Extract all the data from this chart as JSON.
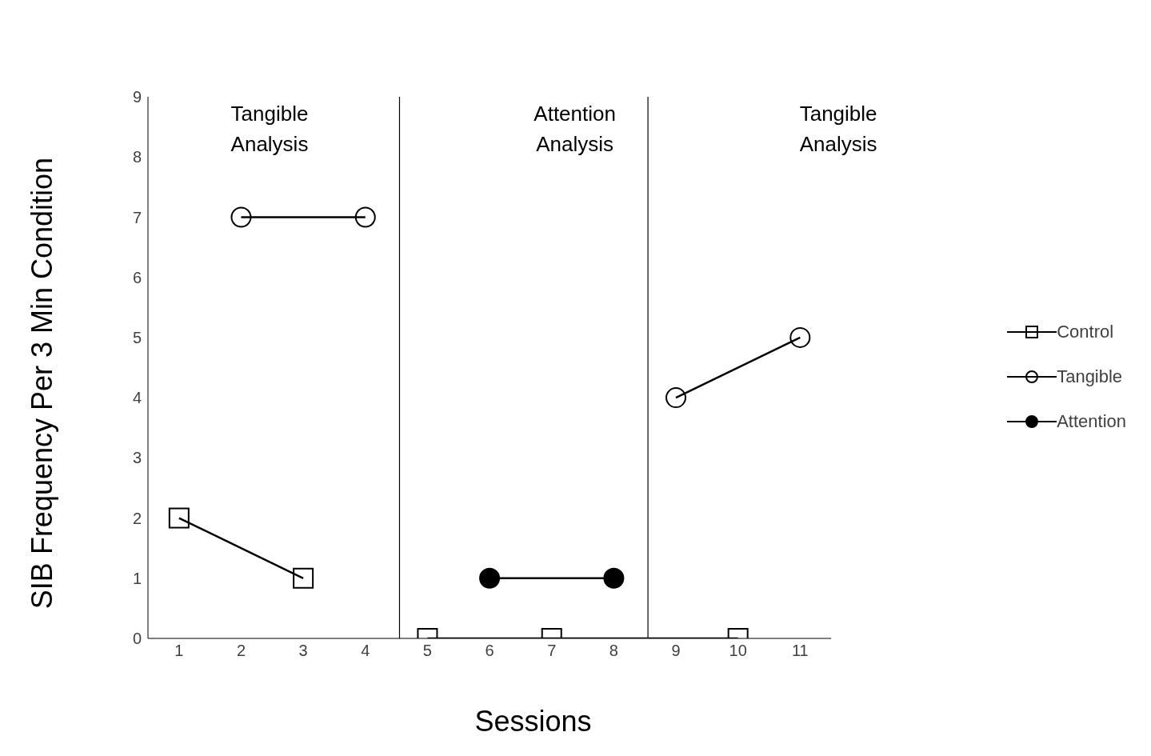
{
  "chart_data": {
    "type": "line",
    "xlabel": "Sessions",
    "ylabel": "SIB Frequency Per 3 Min Condition",
    "xlim": [
      0.5,
      11.5
    ],
    "xticks": [
      1,
      2,
      3,
      4,
      5,
      6,
      7,
      8,
      9,
      10,
      11
    ],
    "ylim": [
      0,
      9
    ],
    "yticks": [
      0,
      1,
      2,
      3,
      4,
      5,
      6,
      7,
      8,
      9
    ],
    "legend": "right",
    "series": [
      {
        "name": "Control",
        "color": "#000000",
        "marker": "square-open",
        "x": [
          1,
          3,
          4,
          5,
          7,
          10
        ],
        "values": [
          2,
          1,
          null,
          0,
          0,
          0
        ]
      },
      {
        "name": "Tangible",
        "color": "#000000",
        "marker": "circle-open",
        "x": [
          2,
          4,
          5,
          9,
          11
        ],
        "values": [
          7,
          7,
          null,
          4,
          5
        ]
      },
      {
        "name": "Attention",
        "color": "#000000",
        "marker": "circle",
        "x": [
          6,
          8
        ],
        "values": [
          1,
          1
        ]
      }
    ],
    "ref_lines": [
      {
        "axis": "x",
        "value": 4.55,
        "color": "#000000"
      },
      {
        "axis": "x",
        "value": 8.55,
        "color": "#000000"
      }
    ],
    "annotations": [
      "Tangible Analysis",
      "Attention Analysis",
      "Tangible Analysis"
    ]
  }
}
